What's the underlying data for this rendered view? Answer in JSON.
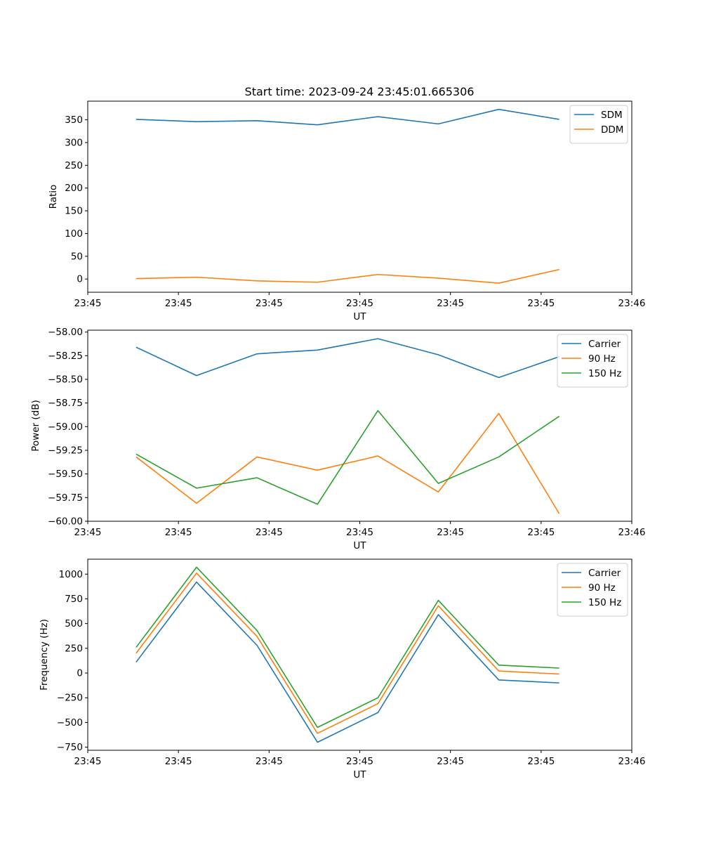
{
  "figure_title": "Start time: 2023-09-24 23:45:01.665306",
  "chart_data": [
    {
      "type": "line",
      "id": "ratio",
      "title": "Start time: 2023-09-24 23:45:01.665306",
      "xlabel": "UT",
      "ylabel": "Ratio",
      "x": [
        1,
        2,
        3,
        4,
        5,
        6,
        7,
        8
      ],
      "xlim": [
        0.2,
        9.2
      ],
      "ylim": [
        -29,
        391
      ],
      "yticks": [
        0,
        50,
        100,
        150,
        200,
        250,
        300,
        350
      ],
      "ytick_labels": [
        "0",
        "50",
        "100",
        "150",
        "200",
        "250",
        "300",
        "350"
      ],
      "xticks": [
        0.2,
        1.7,
        3.2,
        4.7,
        6.2,
        7.7,
        9.2
      ],
      "xtick_labels": [
        "23:45",
        "23:45",
        "23:45",
        "23:45",
        "23:45",
        "23:45",
        "23:46"
      ],
      "legend_position": "top-right",
      "series": [
        {
          "name": "SDM",
          "color": "#1f77b4",
          "values": [
            351,
            346,
            348,
            339,
            357,
            341,
            373,
            351
          ]
        },
        {
          "name": "DDM",
          "color": "#ff7f0e",
          "values": [
            1,
            4,
            -4,
            -7,
            10,
            2,
            -9,
            21
          ]
        }
      ]
    },
    {
      "type": "line",
      "id": "power",
      "xlabel": "UT",
      "ylabel": "Power (dB)",
      "x": [
        1,
        2,
        3,
        4,
        5,
        6,
        7,
        8
      ],
      "xlim": [
        0.2,
        9.2
      ],
      "ylim": [
        -60.0,
        -57.98
      ],
      "yticks": [
        -60.0,
        -59.75,
        -59.5,
        -59.25,
        -59.0,
        -58.75,
        -58.5,
        -58.25,
        -58.0
      ],
      "ytick_labels": [
        "−60.00",
        "−59.75",
        "−59.50",
        "−59.25",
        "−59.00",
        "−58.75",
        "−58.50",
        "−58.25",
        "−58.00"
      ],
      "xticks": [
        0.2,
        1.7,
        3.2,
        4.7,
        6.2,
        7.7,
        9.2
      ],
      "xtick_labels": [
        "23:45",
        "23:45",
        "23:45",
        "23:45",
        "23:45",
        "23:45",
        "23:46"
      ],
      "legend_position": "top-right",
      "series": [
        {
          "name": "Carrier",
          "color": "#1f77b4",
          "values": [
            -58.16,
            -58.46,
            -58.23,
            -58.19,
            -58.07,
            -58.24,
            -58.48,
            -58.26
          ]
        },
        {
          "name": "90 Hz",
          "color": "#ff7f0e",
          "values": [
            -59.32,
            -59.81,
            -59.32,
            -59.46,
            -59.31,
            -59.69,
            -58.86,
            -59.92
          ]
        },
        {
          "name": "150 Hz",
          "color": "#2ca02c",
          "values": [
            -59.29,
            -59.65,
            -59.54,
            -59.82,
            -58.83,
            -59.6,
            -59.32,
            -58.89
          ]
        }
      ]
    },
    {
      "type": "line",
      "id": "frequency",
      "xlabel": "UT",
      "ylabel": "Frequency (Hz)",
      "x": [
        1,
        2,
        3,
        4,
        5,
        6,
        7,
        8
      ],
      "xlim": [
        0.2,
        9.2
      ],
      "ylim": [
        -781,
        1151
      ],
      "yticks": [
        -750,
        -500,
        -250,
        0,
        250,
        500,
        750,
        1000
      ],
      "ytick_labels": [
        "−750",
        "−500",
        "−250",
        "0",
        "250",
        "500",
        "750",
        "1000"
      ],
      "xticks": [
        0.2,
        1.7,
        3.2,
        4.7,
        6.2,
        7.7,
        9.2
      ],
      "xtick_labels": [
        "23:45",
        "23:45",
        "23:45",
        "23:45",
        "23:45",
        "23:45",
        "23:46"
      ],
      "legend_position": "top-right",
      "series": [
        {
          "name": "Carrier",
          "color": "#1f77b4",
          "values": [
            110,
            920,
            280,
            -700,
            -400,
            590,
            -70,
            -100
          ]
        },
        {
          "name": "90 Hz",
          "color": "#ff7f0e",
          "values": [
            200,
            1010,
            370,
            -610,
            -310,
            680,
            20,
            -10
          ]
        },
        {
          "name": "150 Hz",
          "color": "#2ca02c",
          "values": [
            260,
            1070,
            430,
            -550,
            -250,
            735,
            80,
            50
          ]
        }
      ]
    }
  ]
}
